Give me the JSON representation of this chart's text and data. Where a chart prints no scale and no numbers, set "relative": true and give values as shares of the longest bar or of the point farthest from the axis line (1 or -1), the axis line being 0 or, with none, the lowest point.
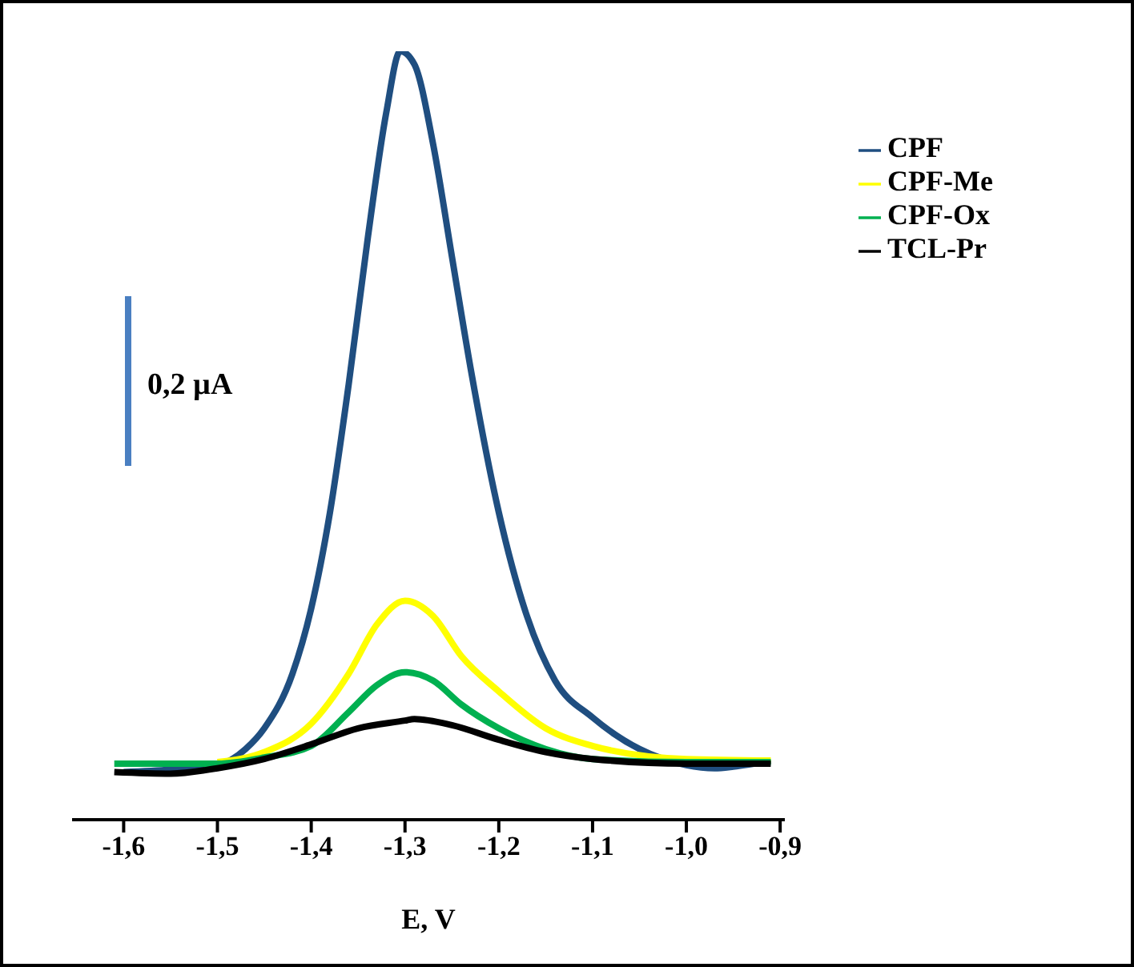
{
  "chart_data": {
    "type": "line",
    "relative": true,
    "xlabel": "E, V",
    "annotations": [
      "0,2 µA"
    ],
    "legend": "top right",
    "marker": "none",
    "line_style": "solid",
    "xlim": [
      -1.655,
      -0.895
    ],
    "xticks": [
      {
        "value": -1.6,
        "label": "-1,6"
      },
      {
        "value": -1.5,
        "label": "-1,5"
      },
      {
        "value": -1.4,
        "label": "-1,4"
      },
      {
        "value": -1.3,
        "label": "-1,3"
      },
      {
        "value": -1.2,
        "label": "-1,2"
      },
      {
        "value": -1.1,
        "label": "-1,1"
      },
      {
        "value": -1.0,
        "label": "-1,0"
      },
      {
        "value": -0.9,
        "label": "-0,9"
      }
    ],
    "series": [
      {
        "name": "CPF",
        "color": "#1f4e80",
        "x": [
          -1.6,
          -1.55,
          -1.5,
          -1.47,
          -1.45,
          -1.42,
          -1.4,
          -1.38,
          -1.36,
          -1.34,
          -1.32,
          -1.305,
          -1.29,
          -1.27,
          -1.25,
          -1.23,
          -1.2,
          -1.17,
          -1.14,
          -1.1,
          -1.05,
          -1.0,
          -0.97,
          -0.95,
          -0.91
        ],
        "values": [
          0.062,
          0.065,
          0.071,
          0.092,
          0.119,
          0.19,
          0.275,
          0.4,
          0.567,
          0.754,
          0.92,
          1.0,
          0.983,
          0.879,
          0.733,
          0.587,
          0.4,
          0.265,
          0.181,
          0.133,
          0.092,
          0.071,
          0.067,
          0.069,
          0.077
        ]
      },
      {
        "name": "CPF-Me",
        "color": "#ffff00",
        "x": [
          -1.5,
          -1.45,
          -1.4,
          -1.36,
          -1.33,
          -1.3,
          -1.27,
          -1.24,
          -1.2,
          -1.15,
          -1.1,
          -1.0,
          -0.91
        ],
        "values": [
          0.075,
          0.088,
          0.125,
          0.19,
          0.254,
          0.285,
          0.265,
          0.213,
          0.167,
          0.119,
          0.096,
          0.079,
          0.077
        ]
      },
      {
        "name": "CPF-Ox",
        "color": "#00b050",
        "x": [
          -1.61,
          -1.5,
          -1.45,
          -1.4,
          -1.36,
          -1.33,
          -1.3,
          -1.27,
          -1.24,
          -1.2,
          -1.15,
          -1.1,
          -1.0,
          -0.91
        ],
        "values": [
          0.073,
          0.073,
          0.081,
          0.096,
          0.14,
          0.175,
          0.192,
          0.181,
          0.15,
          0.119,
          0.092,
          0.079,
          0.075,
          0.075
        ]
      },
      {
        "name": "TCL-Pr",
        "color": "#000000",
        "x": [
          -1.61,
          -1.55,
          -1.5,
          -1.45,
          -1.4,
          -1.35,
          -1.3,
          -1.29,
          -1.25,
          -1.2,
          -1.15,
          -1.1,
          -1.0,
          -0.91
        ],
        "values": [
          0.062,
          0.06,
          0.067,
          0.079,
          0.098,
          0.119,
          0.129,
          0.131,
          0.123,
          0.104,
          0.088,
          0.079,
          0.073,
          0.073
        ]
      }
    ]
  }
}
